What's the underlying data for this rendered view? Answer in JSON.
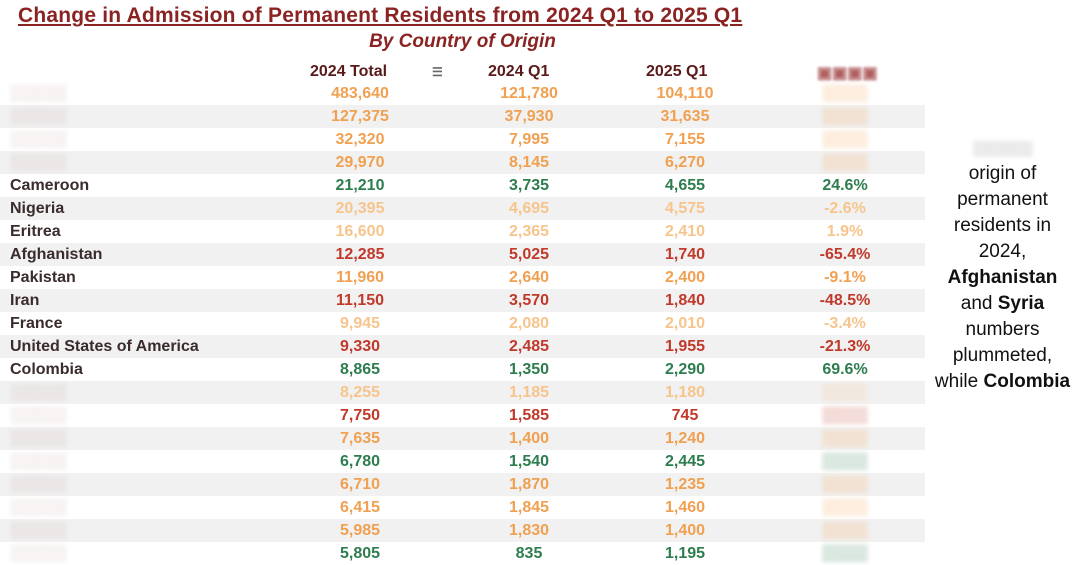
{
  "title": "Change in Admission of Permanent Residents from 2024 Q1 to 2025 Q1",
  "subtitle": "By Country of Origin",
  "colors": {
    "title": "#8b2323",
    "high": "#f0a050",
    "red": "#c0392b",
    "green": "#2e7d4f",
    "pale": "#f7c58c"
  },
  "chart_data": {
    "type": "table",
    "columns": [
      "2024 Total",
      "2024 Q1",
      "2025 Q1",
      ""
    ],
    "rows": [
      {
        "country": "",
        "total": "483,640",
        "q1_2024": "121,780",
        "q1_2025": "104,110",
        "change": "",
        "tone": "high"
      },
      {
        "country": "",
        "total": "127,375",
        "q1_2024": "37,930",
        "q1_2025": "31,635",
        "change": "",
        "tone": "high"
      },
      {
        "country": "",
        "total": "32,320",
        "q1_2024": "7,995",
        "q1_2025": "7,155",
        "change": "",
        "tone": "high"
      },
      {
        "country": "",
        "total": "29,970",
        "q1_2024": "8,145",
        "q1_2025": "6,270",
        "change": "",
        "tone": "high"
      },
      {
        "country": "Cameroon",
        "total": "21,210",
        "q1_2024": "3,735",
        "q1_2025": "4,655",
        "change": "24.6%",
        "tone": "green"
      },
      {
        "country": "Nigeria",
        "total": "20,395",
        "q1_2024": "4,695",
        "q1_2025": "4,575",
        "change": "-2.6%",
        "tone": "pale"
      },
      {
        "country": "Eritrea",
        "total": "16,600",
        "q1_2024": "2,365",
        "q1_2025": "2,410",
        "change": "1.9%",
        "tone": "pale"
      },
      {
        "country": "Afghanistan",
        "total": "12,285",
        "q1_2024": "5,025",
        "q1_2025": "1,740",
        "change": "-65.4%",
        "tone": "red"
      },
      {
        "country": "Pakistan",
        "total": "11,960",
        "q1_2024": "2,640",
        "q1_2025": "2,400",
        "change": "-9.1%",
        "tone": "high"
      },
      {
        "country": "Iran",
        "total": "11,150",
        "q1_2024": "3,570",
        "q1_2025": "1,840",
        "change": "-48.5%",
        "tone": "red"
      },
      {
        "country": "France",
        "total": "9,945",
        "q1_2024": "2,080",
        "q1_2025": "2,010",
        "change": "-3.4%",
        "tone": "pale"
      },
      {
        "country": "United States of America",
        "total": "9,330",
        "q1_2024": "2,485",
        "q1_2025": "1,955",
        "change": "-21.3%",
        "tone": "red"
      },
      {
        "country": "Colombia",
        "total": "8,865",
        "q1_2024": "1,350",
        "q1_2025": "2,290",
        "change": "69.6%",
        "tone": "green"
      },
      {
        "country": "",
        "total": "8,255",
        "q1_2024": "1,185",
        "q1_2025": "1,180",
        "change": "",
        "tone": "pale"
      },
      {
        "country": "",
        "total": "7,750",
        "q1_2024": "1,585",
        "q1_2025": "745",
        "change": "",
        "tone": "red"
      },
      {
        "country": "",
        "total": "7,635",
        "q1_2024": "1,400",
        "q1_2025": "1,240",
        "change": "",
        "tone": "high"
      },
      {
        "country": "",
        "total": "6,780",
        "q1_2024": "1,540",
        "q1_2025": "2,445",
        "change": "",
        "tone": "green"
      },
      {
        "country": "",
        "total": "6,710",
        "q1_2024": "1,870",
        "q1_2025": "1,235",
        "change": "",
        "tone": "high"
      },
      {
        "country": "",
        "total": "6,415",
        "q1_2024": "1,845",
        "q1_2025": "1,460",
        "change": "",
        "tone": "high"
      },
      {
        "country": "",
        "total": "5,985",
        "q1_2024": "1,830",
        "q1_2025": "1,400",
        "change": "",
        "tone": "high"
      },
      {
        "country": "",
        "total": "5,805",
        "q1_2024": "835",
        "q1_2025": "1,195",
        "change": "",
        "tone": "green"
      }
    ]
  },
  "side_note": {
    "line1": "origin of",
    "line2": "permanent",
    "line3": "residents in",
    "line4": "2024,",
    "afghanistan": "Afghanistan",
    "and": "and",
    "syria": "Syria",
    "numbers": "numbers",
    "plummeted": "plummeted,",
    "while": "while",
    "colombia": "Colombia"
  }
}
